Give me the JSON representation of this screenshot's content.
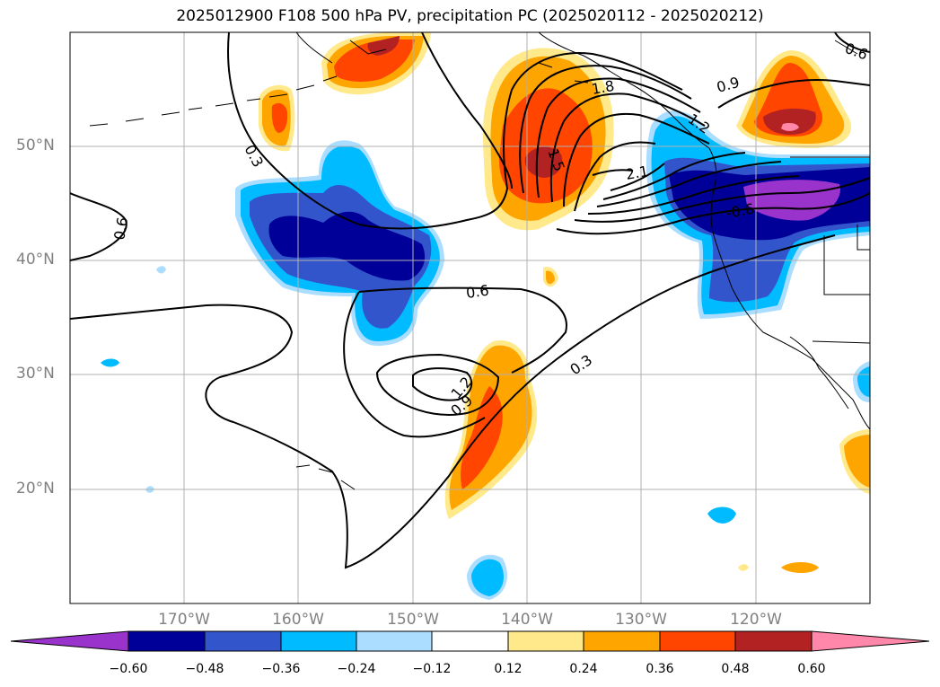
{
  "title": "2025012900 F108 500 hPa PV, precipitation PC (2025020112 - 2025020212)",
  "latitude_labels": [
    "50°N",
    "40°N",
    "30°N",
    "20°N"
  ],
  "longitude_labels": [
    "170°W",
    "160°W",
    "150°W",
    "140°W",
    "130°W",
    "120°W"
  ],
  "contour_labels": [
    "0.3",
    "0.6",
    "0.9",
    "1.2",
    "1.5",
    "1.8",
    "2.1",
    "-0.6",
    "0.6",
    "0.3",
    "0.6",
    "0.9",
    "1.2",
    "0.6"
  ],
  "colorbar": {
    "ticks": [
      "−0.60",
      "−0.48",
      "−0.36",
      "−0.24",
      "−0.12",
      "0.12",
      "0.24",
      "0.36",
      "0.48",
      "0.60"
    ],
    "colors": [
      "#9933cc",
      "#000099",
      "#3355cc",
      "#00bbff",
      "#aaddff",
      "#ffffff",
      "#ffe98a",
      "#ffa500",
      "#ff4500",
      "#b22222",
      "#ff88aa"
    ]
  },
  "colors": {
    "coast": "#000000",
    "grid": "#b0b0b0",
    "contour": "#000000"
  }
}
